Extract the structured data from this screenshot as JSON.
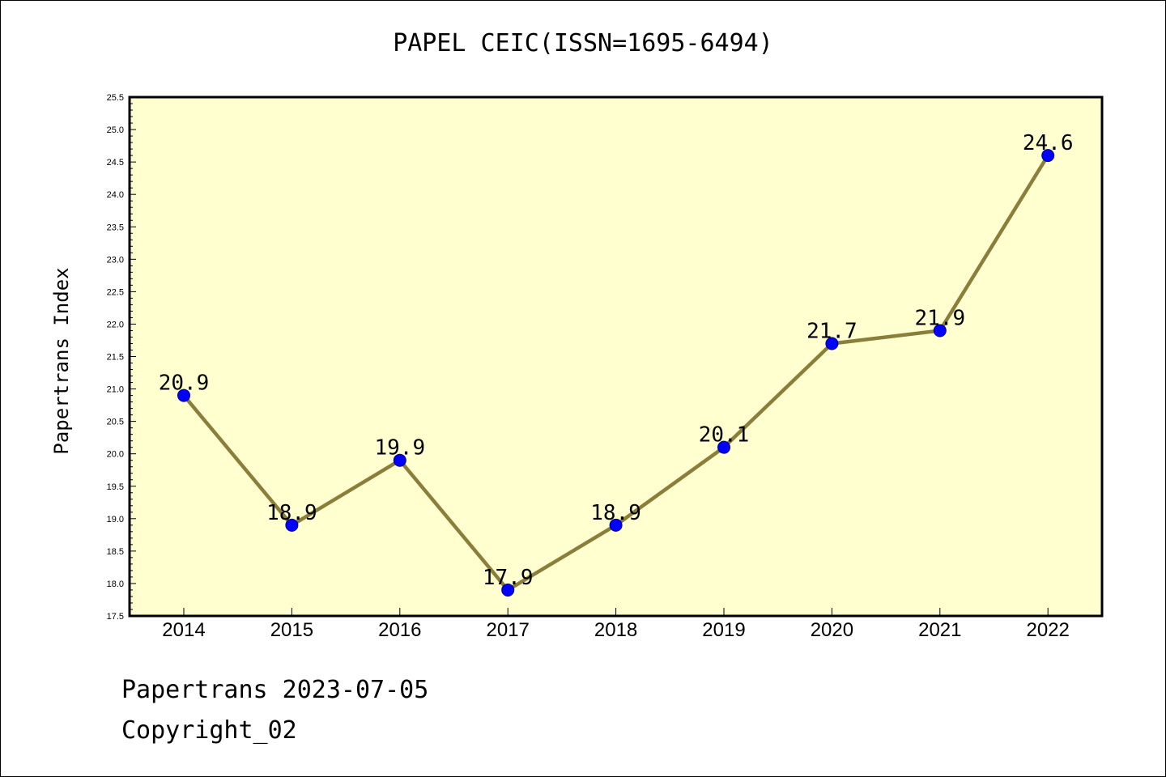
{
  "chart_data": {
    "type": "line",
    "title": "PAPEL CEIC(ISSN=1695-6494)",
    "xlabel": "",
    "ylabel": "Papertrans Index",
    "categories": [
      "2014",
      "2015",
      "2016",
      "2017",
      "2018",
      "2019",
      "2020",
      "2021",
      "2022"
    ],
    "series": [
      {
        "values": [
          20.9,
          18.9,
          19.9,
          17.9,
          18.9,
          20.1,
          21.7,
          21.9,
          24.6
        ],
        "labels": [
          "20.9",
          "18.9",
          "19.9",
          "17.9",
          "18.9",
          "20.1",
          "21.7",
          "21.9",
          "24.6"
        ]
      }
    ],
    "ylim": [
      17.5,
      25.5
    ],
    "yticks": [
      "17.5",
      "18.0",
      "18.5",
      "19.0",
      "19.5",
      "20.0",
      "20.5",
      "21.0",
      "21.5",
      "22.0",
      "22.5",
      "23.0",
      "23.5",
      "24.0",
      "24.5",
      "25.0",
      "25.5"
    ],
    "grid": false,
    "colors": {
      "line": "#8b7d3a",
      "marker": "#0000ff",
      "plot_background": "#ffffd0"
    }
  },
  "footer": {
    "date_text": "Papertrans 2023-07-05",
    "copyright_text": "Copyright_02"
  }
}
